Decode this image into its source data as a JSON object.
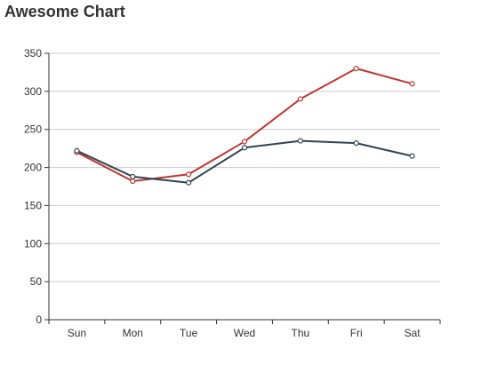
{
  "chart_data": {
    "type": "line",
    "title": "Awesome Chart",
    "categories": [
      "Sun",
      "Mon",
      "Tue",
      "Wed",
      "Thu",
      "Fri",
      "Sat"
    ],
    "ylim": [
      0,
      350
    ],
    "yticks": [
      0,
      50,
      100,
      150,
      200,
      250,
      300,
      350
    ],
    "grid": true,
    "series": [
      {
        "values": [
          220,
          182,
          191,
          234,
          290,
          330,
          310
        ],
        "color": "#c23531"
      },
      {
        "values": [
          222,
          188,
          180,
          226,
          235,
          232,
          215
        ],
        "color": "#2f4554"
      }
    ]
  }
}
